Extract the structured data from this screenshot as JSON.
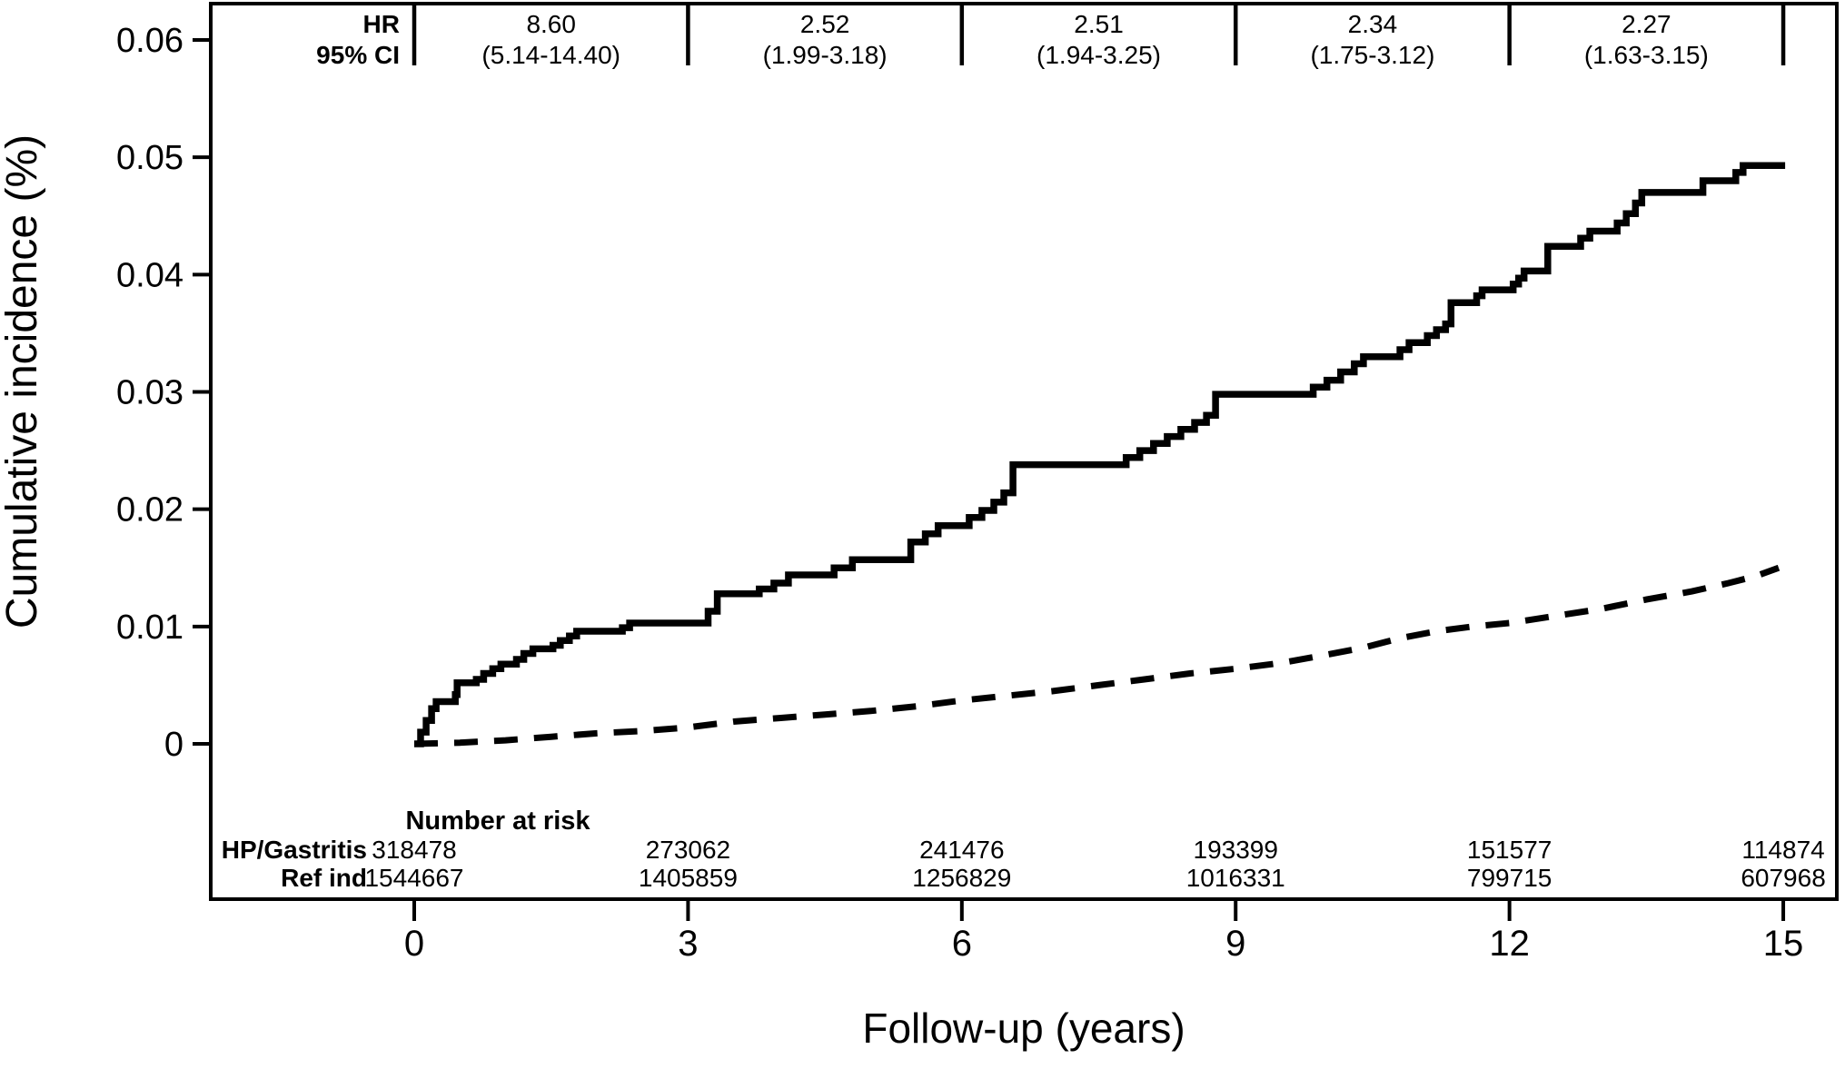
{
  "figure": {
    "background": "#ffffff",
    "line_color": "#000000"
  },
  "chart_data": {
    "type": "line",
    "subtype": "cumulative-incidence-step-curves",
    "title": "",
    "xlabel": "Follow-up (years)",
    "ylabel": "Cumulative incidence (%)",
    "xlim": [
      0,
      15
    ],
    "ylim": [
      0,
      0.06
    ],
    "grid": false,
    "legend_position": "none",
    "x_ticks": {
      "values": [
        0,
        3,
        6,
        9,
        12,
        15
      ],
      "labels": [
        "0",
        "3",
        "6",
        "9",
        "12",
        "15"
      ]
    },
    "y_ticks": {
      "values": [
        0.06,
        0.05,
        0.04,
        0.03,
        0.02,
        0.01,
        0
      ],
      "labels": [
        "0.06",
        "0.05",
        "0.04",
        "0.03",
        "0.02",
        "0.01",
        "0"
      ]
    },
    "hazard_ratio_banner": {
      "row1_label": "HR",
      "row2_label": "95% CI",
      "intervals": [
        {
          "from": 0,
          "to": 3,
          "hr": "8.60",
          "ci": "(5.14-14.40)"
        },
        {
          "from": 3,
          "to": 6,
          "hr": "2.52",
          "ci": "(1.99-3.18)"
        },
        {
          "from": 6,
          "to": 9,
          "hr": "2.51",
          "ci": "(1.94-3.25)"
        },
        {
          "from": 9,
          "to": 12,
          "hr": "2.34",
          "ci": "(1.75-3.12)"
        },
        {
          "from": 12,
          "to": 15,
          "hr": "2.27",
          "ci": "(1.63-3.15)"
        }
      ]
    },
    "series": [
      {
        "name": "HP/Gastritis",
        "line_style": "solid",
        "step": true,
        "points": [
          [
            0,
            0
          ],
          [
            0.07,
            0.001
          ],
          [
            0.13,
            0.002
          ],
          [
            0.19,
            0.003
          ],
          [
            0.24,
            0.0036
          ],
          [
            0.45,
            0.0042
          ],
          [
            0.47,
            0.0052
          ],
          [
            0.68,
            0.0055
          ],
          [
            0.76,
            0.006
          ],
          [
            0.86,
            0.0064
          ],
          [
            0.95,
            0.0068
          ],
          [
            1.12,
            0.0072
          ],
          [
            1.2,
            0.0077
          ],
          [
            1.3,
            0.0081
          ],
          [
            1.52,
            0.0084
          ],
          [
            1.6,
            0.0088
          ],
          [
            1.7,
            0.0092
          ],
          [
            1.78,
            0.0096
          ],
          [
            2.28,
            0.0099
          ],
          [
            2.36,
            0.0103
          ],
          [
            3.22,
            0.0113
          ],
          [
            3.32,
            0.0128
          ],
          [
            3.78,
            0.0132
          ],
          [
            3.94,
            0.0137
          ],
          [
            4.1,
            0.0144
          ],
          [
            4.6,
            0.015
          ],
          [
            4.8,
            0.0157
          ],
          [
            5.44,
            0.0172
          ],
          [
            5.6,
            0.0179
          ],
          [
            5.74,
            0.0186
          ],
          [
            6.08,
            0.0193
          ],
          [
            6.22,
            0.0199
          ],
          [
            6.35,
            0.0206
          ],
          [
            6.46,
            0.0214
          ],
          [
            6.56,
            0.0238
          ],
          [
            7.8,
            0.0244
          ],
          [
            7.95,
            0.025
          ],
          [
            8.1,
            0.0256
          ],
          [
            8.25,
            0.0262
          ],
          [
            8.4,
            0.0268
          ],
          [
            8.55,
            0.0274
          ],
          [
            8.68,
            0.028
          ],
          [
            8.78,
            0.0298
          ],
          [
            9.85,
            0.0304
          ],
          [
            10.0,
            0.031
          ],
          [
            10.15,
            0.0317
          ],
          [
            10.3,
            0.0324
          ],
          [
            10.4,
            0.033
          ],
          [
            10.8,
            0.0336
          ],
          [
            10.9,
            0.0342
          ],
          [
            11.1,
            0.0348
          ],
          [
            11.2,
            0.0353
          ],
          [
            11.3,
            0.0358
          ],
          [
            11.36,
            0.0376
          ],
          [
            11.64,
            0.0382
          ],
          [
            11.7,
            0.0387
          ],
          [
            12.04,
            0.0392
          ],
          [
            12.1,
            0.0397
          ],
          [
            12.16,
            0.0403
          ],
          [
            12.42,
            0.0424
          ],
          [
            12.78,
            0.0431
          ],
          [
            12.88,
            0.0437
          ],
          [
            13.18,
            0.0444
          ],
          [
            13.28,
            0.0452
          ],
          [
            13.38,
            0.0461
          ],
          [
            13.45,
            0.047
          ],
          [
            14.12,
            0.048
          ],
          [
            14.48,
            0.0487
          ],
          [
            14.56,
            0.0493
          ],
          [
            15.02,
            0.0493
          ]
        ]
      },
      {
        "name": "Ref ind",
        "line_style": "dashed",
        "step": false,
        "points": [
          [
            0,
            0
          ],
          [
            0.5,
            0.0001
          ],
          [
            1.0,
            0.0003
          ],
          [
            1.5,
            0.0006
          ],
          [
            2.0,
            0.0009
          ],
          [
            2.5,
            0.0011
          ],
          [
            3.0,
            0.0014
          ],
          [
            3.5,
            0.0019
          ],
          [
            4.0,
            0.0022
          ],
          [
            4.5,
            0.0025
          ],
          [
            5.0,
            0.0028
          ],
          [
            5.5,
            0.0032
          ],
          [
            6.0,
            0.0037
          ],
          [
            6.5,
            0.0041
          ],
          [
            7.0,
            0.0045
          ],
          [
            7.5,
            0.005
          ],
          [
            8.0,
            0.0055
          ],
          [
            8.5,
            0.006
          ],
          [
            9.0,
            0.0064
          ],
          [
            9.5,
            0.0069
          ],
          [
            10.0,
            0.0076
          ],
          [
            10.4,
            0.0082
          ],
          [
            10.8,
            0.009
          ],
          [
            11.2,
            0.0096
          ],
          [
            11.6,
            0.01
          ],
          [
            12.0,
            0.0103
          ],
          [
            12.5,
            0.0109
          ],
          [
            13.0,
            0.0115
          ],
          [
            13.5,
            0.0123
          ],
          [
            14.0,
            0.013
          ],
          [
            14.4,
            0.0137
          ],
          [
            14.7,
            0.0143
          ],
          [
            14.95,
            0.015
          ]
        ]
      }
    ],
    "number_at_risk": {
      "title": "Number at risk",
      "times": [
        0,
        3,
        6,
        9,
        12,
        15
      ],
      "rows": [
        {
          "label": "HP/Gastritis",
          "counts": [
            "318478",
            "273062",
            "241476",
            "193399",
            "151577",
            "114874"
          ]
        },
        {
          "label": "Ref ind",
          "counts": [
            "1544667",
            "1405859",
            "1256829",
            "1016331",
            "799715",
            "607968"
          ]
        }
      ]
    }
  }
}
